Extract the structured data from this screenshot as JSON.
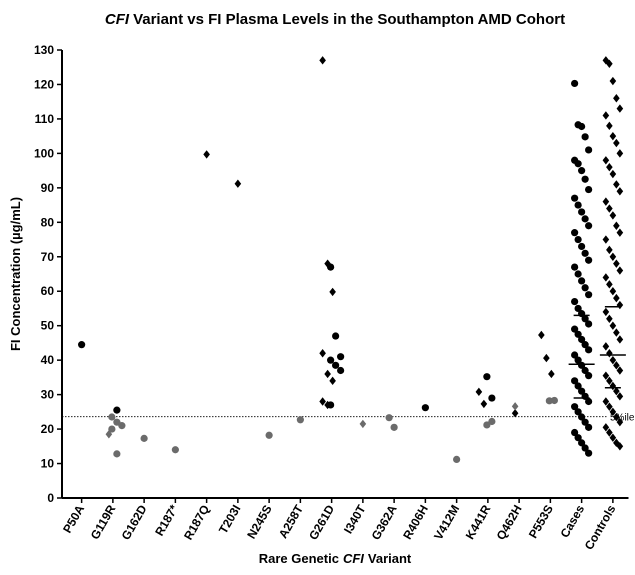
{
  "chart_data": {
    "type": "scatter",
    "title": {
      "italic": "CFI",
      "rest": "Variant vs FI Plasma Levels in the Southampton AMD Cohort"
    },
    "xlabel": {
      "before": "Rare Genetic",
      "italic": "CFI",
      "after": "Variant"
    },
    "ylabel": "FI Concentration (µg/mL)",
    "categories": [
      "P50A",
      "G119R",
      "G162D",
      "R187*",
      "R187Q",
      "T203I",
      "N245S",
      "A258T",
      "G261D",
      "I340T",
      "G362A",
      "R406H",
      "V412M",
      "K441R",
      "Q462H",
      "P553S",
      "Cases",
      "Controls"
    ],
    "ylim": [
      0,
      130
    ],
    "yticks": [
      0,
      10,
      20,
      30,
      40,
      50,
      60,
      70,
      80,
      90,
      100,
      110,
      120,
      130
    ],
    "reference_line": {
      "value": 23.6,
      "label": "5%ile"
    },
    "series": [
      {
        "color": "#000000",
        "marker": "circle",
        "values": [
          [
            44.5
          ],
          [
            25.5
          ],
          [],
          [],
          [],
          [],
          [],
          [],
          [
            67,
            47,
            41,
            40,
            38.5,
            37,
            27
          ],
          [],
          [],
          [
            26.2
          ],
          [],
          [
            35.2,
            29
          ],
          [],
          [],
          [
            120.3,
            108.3,
            107.8,
            104.8,
            101,
            98,
            97,
            95,
            92.5,
            89.5,
            87,
            85,
            83,
            81,
            79,
            77,
            75,
            73,
            71,
            69,
            67,
            65,
            63,
            61,
            59,
            57,
            55,
            53.5,
            52,
            50.5,
            49,
            47.5,
            46,
            44.5,
            43,
            41.5,
            40,
            38.5,
            37,
            35.5,
            34,
            32.5,
            31,
            29.5,
            28,
            26.5,
            25,
            23.5,
            22,
            20.5,
            19,
            17.5,
            16,
            14.5,
            13
          ],
          []
        ]
      },
      {
        "color": "#6b6b6b",
        "marker": "circle",
        "values": [
          [],
          [
            23.5,
            22,
            21,
            20,
            12.8
          ],
          [
            17.3
          ],
          [
            14
          ],
          [],
          [],
          [
            18.2
          ],
          [
            22.7
          ],
          [],
          [],
          [
            23.3,
            20.5
          ],
          [],
          [
            11.2
          ],
          [
            21.2,
            22.2
          ],
          [],
          [
            28.2,
            28.3
          ],
          [],
          []
        ]
      },
      {
        "color": "#000000",
        "marker": "diamond",
        "values": [
          [],
          [],
          [],
          [],
          [
            99.7
          ],
          [
            91.2
          ],
          [],
          [],
          [
            127,
            68,
            59.8,
            42,
            36,
            34,
            28,
            27
          ],
          [],
          [],
          [],
          [],
          [
            30.8,
            27.3
          ],
          [
            24.6
          ],
          [
            47.3,
            40.6,
            36
          ],
          [],
          [
            127,
            126,
            121,
            116,
            113,
            111,
            108,
            105,
            103,
            100,
            98,
            96,
            94,
            91,
            89,
            86,
            84,
            82,
            79,
            77,
            75,
            72,
            70,
            68,
            66,
            64,
            62,
            60,
            58,
            56,
            54,
            52,
            50,
            48,
            46,
            44,
            42,
            40,
            38.5,
            37,
            35.5,
            34,
            32.5,
            31,
            29.5,
            28,
            26.5,
            25,
            23.5,
            22,
            20.5,
            19,
            17.5,
            16,
            15
          ]
        ]
      },
      {
        "color": "#6b6b6b",
        "marker": "diamond",
        "values": [
          [],
          [
            18.5
          ],
          [],
          [],
          [],
          [],
          [],
          [],
          [],
          [
            21.5
          ],
          [],
          [],
          [],
          [],
          [
            26.6
          ],
          [],
          [],
          []
        ]
      }
    ],
    "medians": [
      null,
      null,
      null,
      null,
      null,
      null,
      null,
      null,
      null,
      null,
      null,
      null,
      null,
      null,
      null,
      null,
      38.8,
      41.5
    ],
    "q1": [
      null,
      null,
      null,
      null,
      null,
      null,
      null,
      null,
      null,
      null,
      null,
      null,
      null,
      null,
      null,
      null,
      29,
      32
    ],
    "q3": [
      null,
      null,
      null,
      null,
      null,
      null,
      null,
      null,
      null,
      null,
      null,
      null,
      null,
      null,
      null,
      null,
      53,
      55.5
    ]
  }
}
